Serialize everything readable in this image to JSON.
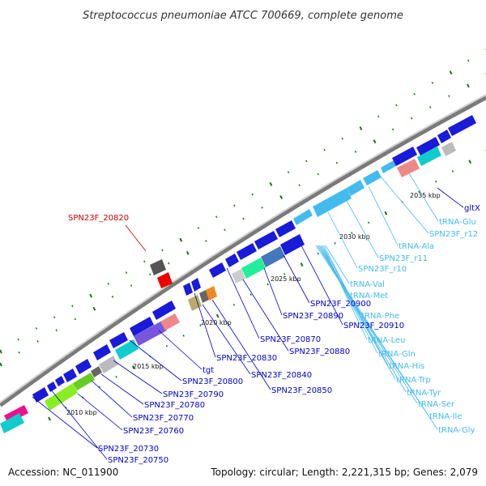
{
  "title": "Streptococcus pneumoniae ATCC 700669, complete genome",
  "footer": {
    "accession": "Accession: NC_011900",
    "summary": "Topology: circular; Length: 2,221,315 bp; Genes: 2,079"
  },
  "colors": {
    "backbone": "#999999",
    "tick": "#117711",
    "gene": "#1a1ad9",
    "trna": "#44bbee",
    "highlight": "#cc1111",
    "label_gene": "#0000cc",
    "label_trna": "#44bbee",
    "label_highlight": "#cc0000"
  },
  "kbp_markers": [
    "2010 kbp",
    "2015 kbp",
    "2020 kbp",
    "2025 kbp",
    "2030 kbp",
    "2035 kbp"
  ],
  "labels_gene": [
    "SPN23F_20730",
    "SPN23F_20750",
    "SPN23F_20760",
    "SPN23F_20770",
    "SPN23F_20780",
    "SPN23F_20790",
    "SPN23F_20800",
    "tgt",
    "SPN23F_20830",
    "SPN23F_20840",
    "SPN23F_20850",
    "SPN23F_20870",
    "SPN23F_20880",
    "SPN23F_20890",
    "SPN23F_20900",
    "SPN23F_20910",
    "gltX"
  ],
  "labels_trna": [
    "tRNA-Glu",
    "SPN23F_r12",
    "tRNA-Ala",
    "SPN23F_r11",
    "SPN23F_r10",
    "tRNA-Val",
    "tRNA-Met",
    "tRNA-Phe",
    "tRNA-Leu",
    "tRNA-Gln",
    "tRNA-His",
    "tRNA-Trp",
    "tRNA-Tyr",
    "tRNA-Ser",
    "tRNA-Ile",
    "tRNA-Gly"
  ],
  "labels_highlight": [
    "SPN23F_20820"
  ]
}
